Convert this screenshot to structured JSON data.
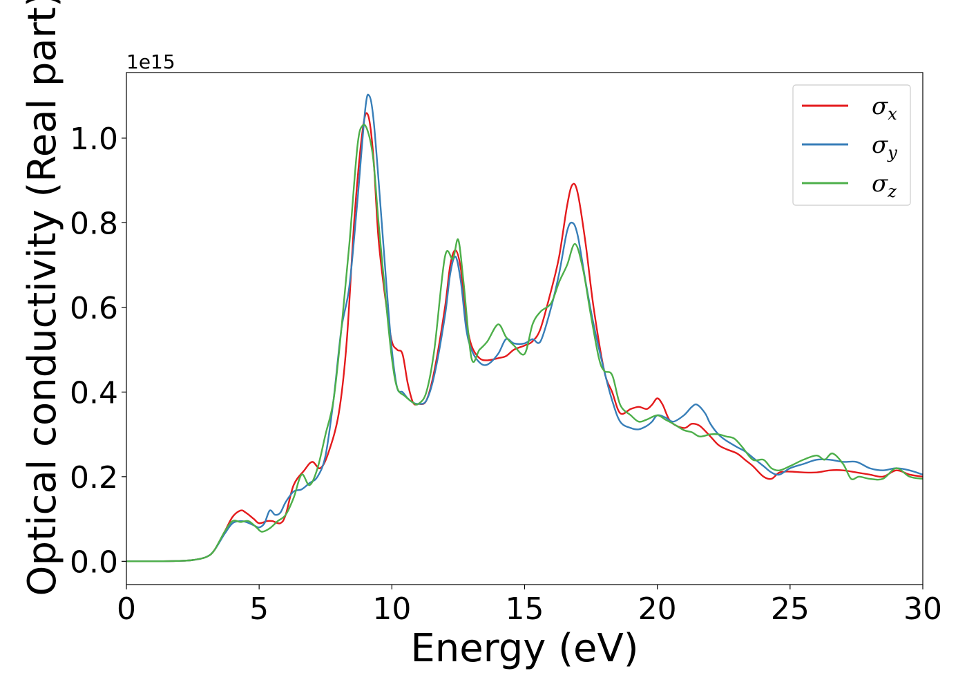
{
  "chart_data": {
    "type": "line",
    "title": "",
    "xlabel": "Energy (eV)",
    "ylabel": "Optical conductivity (Real part)",
    "y_offset_label": "1e15",
    "xlim": [
      0,
      30
    ],
    "ylim": [
      -0.055,
      1.155
    ],
    "xticks": [
      0,
      5,
      10,
      15,
      20,
      25,
      30
    ],
    "yticks": [
      0.0,
      0.2,
      0.4,
      0.6,
      0.8,
      1.0
    ],
    "xtick_labels": [
      "0",
      "5",
      "10",
      "15",
      "20",
      "25",
      "30"
    ],
    "ytick_labels": [
      "0.0",
      "0.2",
      "0.4",
      "0.6",
      "0.8",
      "1.0"
    ],
    "grid": false,
    "legend_position": "top-right",
    "series": [
      {
        "name": "σx",
        "symbol": "σ",
        "subscript": "x",
        "color": "#e41a1c",
        "x": [
          0,
          1,
          2,
          2.5,
          3,
          3.3,
          3.7,
          4.0,
          4.3,
          4.5,
          4.8,
          5.0,
          5.3,
          5.5,
          5.8,
          6.0,
          6.3,
          6.7,
          7.0,
          7.3,
          7.6,
          8.0,
          8.3,
          8.6,
          8.9,
          9.1,
          9.3,
          9.5,
          9.8,
          10.0,
          10.2,
          10.4,
          10.6,
          10.8,
          11.0,
          11.3,
          11.6,
          12.0,
          12.2,
          12.4,
          12.6,
          12.8,
          13.0,
          13.3,
          13.6,
          14.0,
          14.3,
          14.6,
          15.0,
          15.3,
          15.6,
          16.0,
          16.3,
          16.6,
          16.8,
          17.0,
          17.3,
          17.6,
          18.0,
          18.3,
          18.6,
          19.0,
          19.3,
          19.6,
          19.8,
          20.0,
          20.2,
          20.5,
          21.0,
          21.3,
          21.6,
          22.0,
          22.3,
          22.6,
          23.0,
          23.3,
          23.6,
          24.0,
          24.3,
          24.6,
          25.0,
          25.5,
          26.0,
          26.5,
          27.0,
          27.5,
          28.0,
          28.5,
          29.0,
          29.5,
          30.0
        ],
        "values": [
          0,
          0,
          0.001,
          0.003,
          0.01,
          0.025,
          0.07,
          0.105,
          0.12,
          0.115,
          0.1,
          0.09,
          0.095,
          0.095,
          0.09,
          0.11,
          0.18,
          0.215,
          0.235,
          0.22,
          0.255,
          0.35,
          0.52,
          0.82,
          1.02,
          1.055,
          0.96,
          0.76,
          0.6,
          0.52,
          0.5,
          0.49,
          0.42,
          0.375,
          0.372,
          0.38,
          0.45,
          0.6,
          0.7,
          0.735,
          0.69,
          0.57,
          0.51,
          0.48,
          0.475,
          0.48,
          0.485,
          0.5,
          0.51,
          0.52,
          0.55,
          0.64,
          0.72,
          0.84,
          0.89,
          0.87,
          0.75,
          0.6,
          0.45,
          0.4,
          0.35,
          0.36,
          0.365,
          0.36,
          0.37,
          0.385,
          0.37,
          0.33,
          0.315,
          0.325,
          0.32,
          0.295,
          0.275,
          0.265,
          0.255,
          0.24,
          0.225,
          0.2,
          0.195,
          0.21,
          0.212,
          0.21,
          0.21,
          0.215,
          0.215,
          0.21,
          0.205,
          0.2,
          0.215,
          0.205,
          0.2
        ]
      },
      {
        "name": "σy",
        "symbol": "σ",
        "subscript": "y",
        "color": "#377eb8",
        "x": [
          0,
          1,
          2,
          2.5,
          3,
          3.3,
          3.7,
          4.0,
          4.3,
          4.5,
          4.8,
          5.0,
          5.2,
          5.4,
          5.6,
          5.8,
          6.0,
          6.3,
          6.6,
          6.9,
          7.2,
          7.5,
          7.8,
          8.1,
          8.4,
          8.7,
          9.0,
          9.15,
          9.3,
          9.5,
          9.8,
          10.0,
          10.2,
          10.4,
          10.6,
          10.8,
          11.0,
          11.3,
          11.6,
          12.0,
          12.2,
          12.4,
          12.6,
          12.8,
          13.0,
          13.3,
          13.6,
          14.0,
          14.3,
          14.6,
          15.0,
          15.3,
          15.6,
          16.0,
          16.3,
          16.6,
          16.8,
          17.0,
          17.3,
          17.6,
          18.0,
          18.3,
          18.6,
          19.0,
          19.3,
          19.6,
          19.8,
          20.0,
          20.3,
          20.6,
          21.0,
          21.3,
          21.5,
          21.8,
          22.0,
          22.3,
          22.6,
          23.0,
          23.3,
          23.6,
          24.0,
          24.3,
          24.6,
          25.0,
          25.5,
          26.0,
          26.5,
          27.0,
          27.5,
          28.0,
          28.5,
          29.0,
          29.5,
          30.0
        ],
        "values": [
          0,
          0,
          0.001,
          0.003,
          0.01,
          0.025,
          0.065,
          0.09,
          0.095,
          0.093,
          0.085,
          0.08,
          0.09,
          0.12,
          0.11,
          0.115,
          0.14,
          0.165,
          0.17,
          0.185,
          0.2,
          0.25,
          0.38,
          0.55,
          0.65,
          0.85,
          1.07,
          1.1,
          1.05,
          0.9,
          0.65,
          0.5,
          0.41,
          0.4,
          0.385,
          0.375,
          0.372,
          0.38,
          0.44,
          0.58,
          0.68,
          0.72,
          0.66,
          0.55,
          0.5,
          0.47,
          0.465,
          0.49,
          0.525,
          0.515,
          0.515,
          0.525,
          0.52,
          0.6,
          0.68,
          0.78,
          0.8,
          0.77,
          0.66,
          0.56,
          0.45,
          0.38,
          0.33,
          0.315,
          0.312,
          0.32,
          0.33,
          0.345,
          0.34,
          0.33,
          0.345,
          0.365,
          0.37,
          0.35,
          0.325,
          0.3,
          0.285,
          0.27,
          0.26,
          0.245,
          0.225,
          0.21,
          0.205,
          0.22,
          0.23,
          0.24,
          0.24,
          0.235,
          0.235,
          0.22,
          0.215,
          0.22,
          0.215,
          0.205
        ]
      },
      {
        "name": "σz",
        "symbol": "σ",
        "subscript": "z",
        "color": "#4daf4a",
        "x": [
          0,
          1,
          2,
          2.5,
          3,
          3.3,
          3.7,
          4.0,
          4.3,
          4.6,
          4.9,
          5.1,
          5.4,
          5.7,
          6.0,
          6.3,
          6.6,
          6.9,
          7.2,
          7.5,
          7.8,
          8.1,
          8.4,
          8.7,
          8.9,
          9.1,
          9.3,
          9.5,
          9.8,
          10.0,
          10.2,
          10.5,
          10.8,
          11.0,
          11.3,
          11.6,
          12.0,
          12.3,
          12.5,
          12.7,
          13.0,
          13.3,
          13.6,
          14.0,
          14.3,
          14.6,
          15.0,
          15.3,
          15.6,
          16.0,
          16.3,
          16.6,
          16.9,
          17.2,
          17.5,
          17.8,
          18.0,
          18.3,
          18.6,
          19.0,
          19.3,
          19.6,
          20.0,
          20.3,
          20.6,
          21.0,
          21.3,
          21.6,
          22.0,
          22.3,
          22.6,
          22.9,
          23.2,
          23.6,
          24.0,
          24.3,
          24.6,
          25.0,
          25.5,
          26.0,
          26.3,
          26.6,
          27.0,
          27.3,
          27.6,
          28.0,
          28.5,
          29.0,
          29.5,
          30.0
        ],
        "values": [
          0,
          0,
          0.001,
          0.003,
          0.01,
          0.025,
          0.07,
          0.095,
          0.093,
          0.095,
          0.08,
          0.07,
          0.078,
          0.095,
          0.11,
          0.15,
          0.205,
          0.18,
          0.22,
          0.3,
          0.38,
          0.55,
          0.75,
          0.98,
          1.03,
          1.015,
          0.95,
          0.8,
          0.6,
          0.48,
          0.41,
          0.39,
          0.375,
          0.372,
          0.4,
          0.5,
          0.72,
          0.715,
          0.76,
          0.66,
          0.48,
          0.5,
          0.52,
          0.56,
          0.53,
          0.51,
          0.49,
          0.56,
          0.59,
          0.61,
          0.66,
          0.7,
          0.75,
          0.69,
          0.58,
          0.48,
          0.45,
          0.44,
          0.37,
          0.345,
          0.33,
          0.335,
          0.345,
          0.335,
          0.325,
          0.31,
          0.305,
          0.295,
          0.3,
          0.3,
          0.295,
          0.29,
          0.27,
          0.24,
          0.24,
          0.22,
          0.215,
          0.225,
          0.24,
          0.25,
          0.24,
          0.255,
          0.23,
          0.195,
          0.2,
          0.195,
          0.195,
          0.22,
          0.2,
          0.195
        ]
      }
    ]
  }
}
